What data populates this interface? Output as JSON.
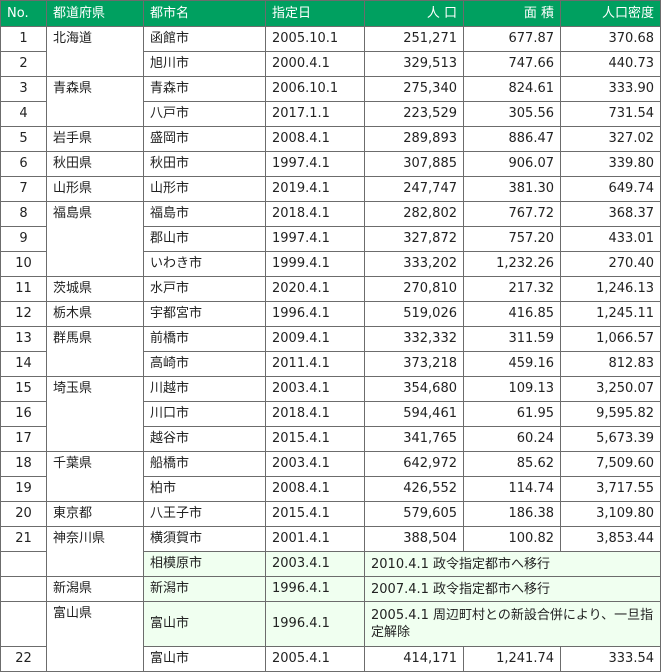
{
  "headers": {
    "no": "No.",
    "prefecture": "都道府県",
    "city": "都市名",
    "date": "指定日",
    "population": "人 口",
    "area": "面 積",
    "density": "人口密度"
  },
  "rows": [
    {
      "no": "1",
      "prefecture": "北海道",
      "city": "函館市",
      "date": "2005.10.1",
      "population": "251,271",
      "area": "677.87",
      "density": "370.68"
    },
    {
      "no": "2",
      "prefecture": "",
      "city": "旭川市",
      "date": "2000.4.1",
      "population": "329,513",
      "area": "747.66",
      "density": "440.73"
    },
    {
      "no": "3",
      "prefecture": "青森県",
      "city": "青森市",
      "date": "2006.10.1",
      "population": "275,340",
      "area": "824.61",
      "density": "333.90"
    },
    {
      "no": "4",
      "prefecture": "",
      "city": "八戸市",
      "date": "2017.1.1",
      "population": "223,529",
      "area": "305.56",
      "density": "731.54"
    },
    {
      "no": "5",
      "prefecture": "岩手県",
      "city": "盛岡市",
      "date": "2008.4.1",
      "population": "289,893",
      "area": "886.47",
      "density": "327.02"
    },
    {
      "no": "6",
      "prefecture": "秋田県",
      "city": "秋田市",
      "date": "1997.4.1",
      "population": "307,885",
      "area": "906.07",
      "density": "339.80"
    },
    {
      "no": "7",
      "prefecture": "山形県",
      "city": "山形市",
      "date": "2019.4.1",
      "population": "247,747",
      "area": "381.30",
      "density": "649.74"
    },
    {
      "no": "8",
      "prefecture": "福島県",
      "city": "福島市",
      "date": "2018.4.1",
      "population": "282,802",
      "area": "767.72",
      "density": "368.37"
    },
    {
      "no": "9",
      "prefecture": "",
      "city": "郡山市",
      "date": "1997.4.1",
      "population": "327,872",
      "area": "757.20",
      "density": "433.01"
    },
    {
      "no": "10",
      "prefecture": "",
      "city": "いわき市",
      "date": "1999.4.1",
      "population": "333,202",
      "area": "1,232.26",
      "density": "270.40"
    },
    {
      "no": "11",
      "prefecture": "茨城県",
      "city": "水戸市",
      "date": "2020.4.1",
      "population": "270,810",
      "area": "217.32",
      "density": "1,246.13"
    },
    {
      "no": "12",
      "prefecture": "栃木県",
      "city": "宇都宮市",
      "date": "1996.4.1",
      "population": "519,026",
      "area": "416.85",
      "density": "1,245.11"
    },
    {
      "no": "13",
      "prefecture": "群馬県",
      "city": "前橋市",
      "date": "2009.4.1",
      "population": "332,332",
      "area": "311.59",
      "density": "1,066.57"
    },
    {
      "no": "14",
      "prefecture": "",
      "city": "高崎市",
      "date": "2011.4.1",
      "population": "373,218",
      "area": "459.16",
      "density": "812.83"
    },
    {
      "no": "15",
      "prefecture": "埼玉県",
      "city": "川越市",
      "date": "2003.4.1",
      "population": "354,680",
      "area": "109.13",
      "density": "3,250.07"
    },
    {
      "no": "16",
      "prefecture": "",
      "city": "川口市",
      "date": "2018.4.1",
      "population": "594,461",
      "area": "61.95",
      "density": "9,595.82"
    },
    {
      "no": "17",
      "prefecture": "",
      "city": "越谷市",
      "date": "2015.4.1",
      "population": "341,765",
      "area": "60.24",
      "density": "5,673.39"
    },
    {
      "no": "18",
      "prefecture": "千葉県",
      "city": "船橋市",
      "date": "2003.4.1",
      "population": "642,972",
      "area": "85.62",
      "density": "7,509.60"
    },
    {
      "no": "19",
      "prefecture": "",
      "city": "柏市",
      "date": "2008.4.1",
      "population": "426,552",
      "area": "114.74",
      "density": "3,717.55"
    },
    {
      "no": "20",
      "prefecture": "東京都",
      "city": "八王子市",
      "date": "2015.4.1",
      "population": "579,605",
      "area": "186.38",
      "density": "3,109.80"
    },
    {
      "no": "21",
      "prefecture": "神奈川県",
      "city": "横須賀市",
      "date": "2001.4.1",
      "population": "388,504",
      "area": "100.82",
      "density": "3,853.44"
    }
  ],
  "migrated": [
    {
      "city": "相模原市",
      "date": "2003.4.1",
      "note": "2010.4.1 政令指定都市へ移行"
    },
    {
      "prefecture": "新潟県",
      "city": "新潟市",
      "date": "1996.4.1",
      "note": "2007.4.1 政令指定都市へ移行"
    },
    {
      "prefecture": "富山県",
      "city": "富山市",
      "date": "1996.4.1",
      "note": "2005.4.1 周辺町村との新設合併により、一旦指定解除"
    }
  ],
  "last_row": {
    "no": "22",
    "city": "富山市",
    "date": "2005.4.1",
    "population": "414,171",
    "area": "1,241.74",
    "density": "333.54"
  }
}
